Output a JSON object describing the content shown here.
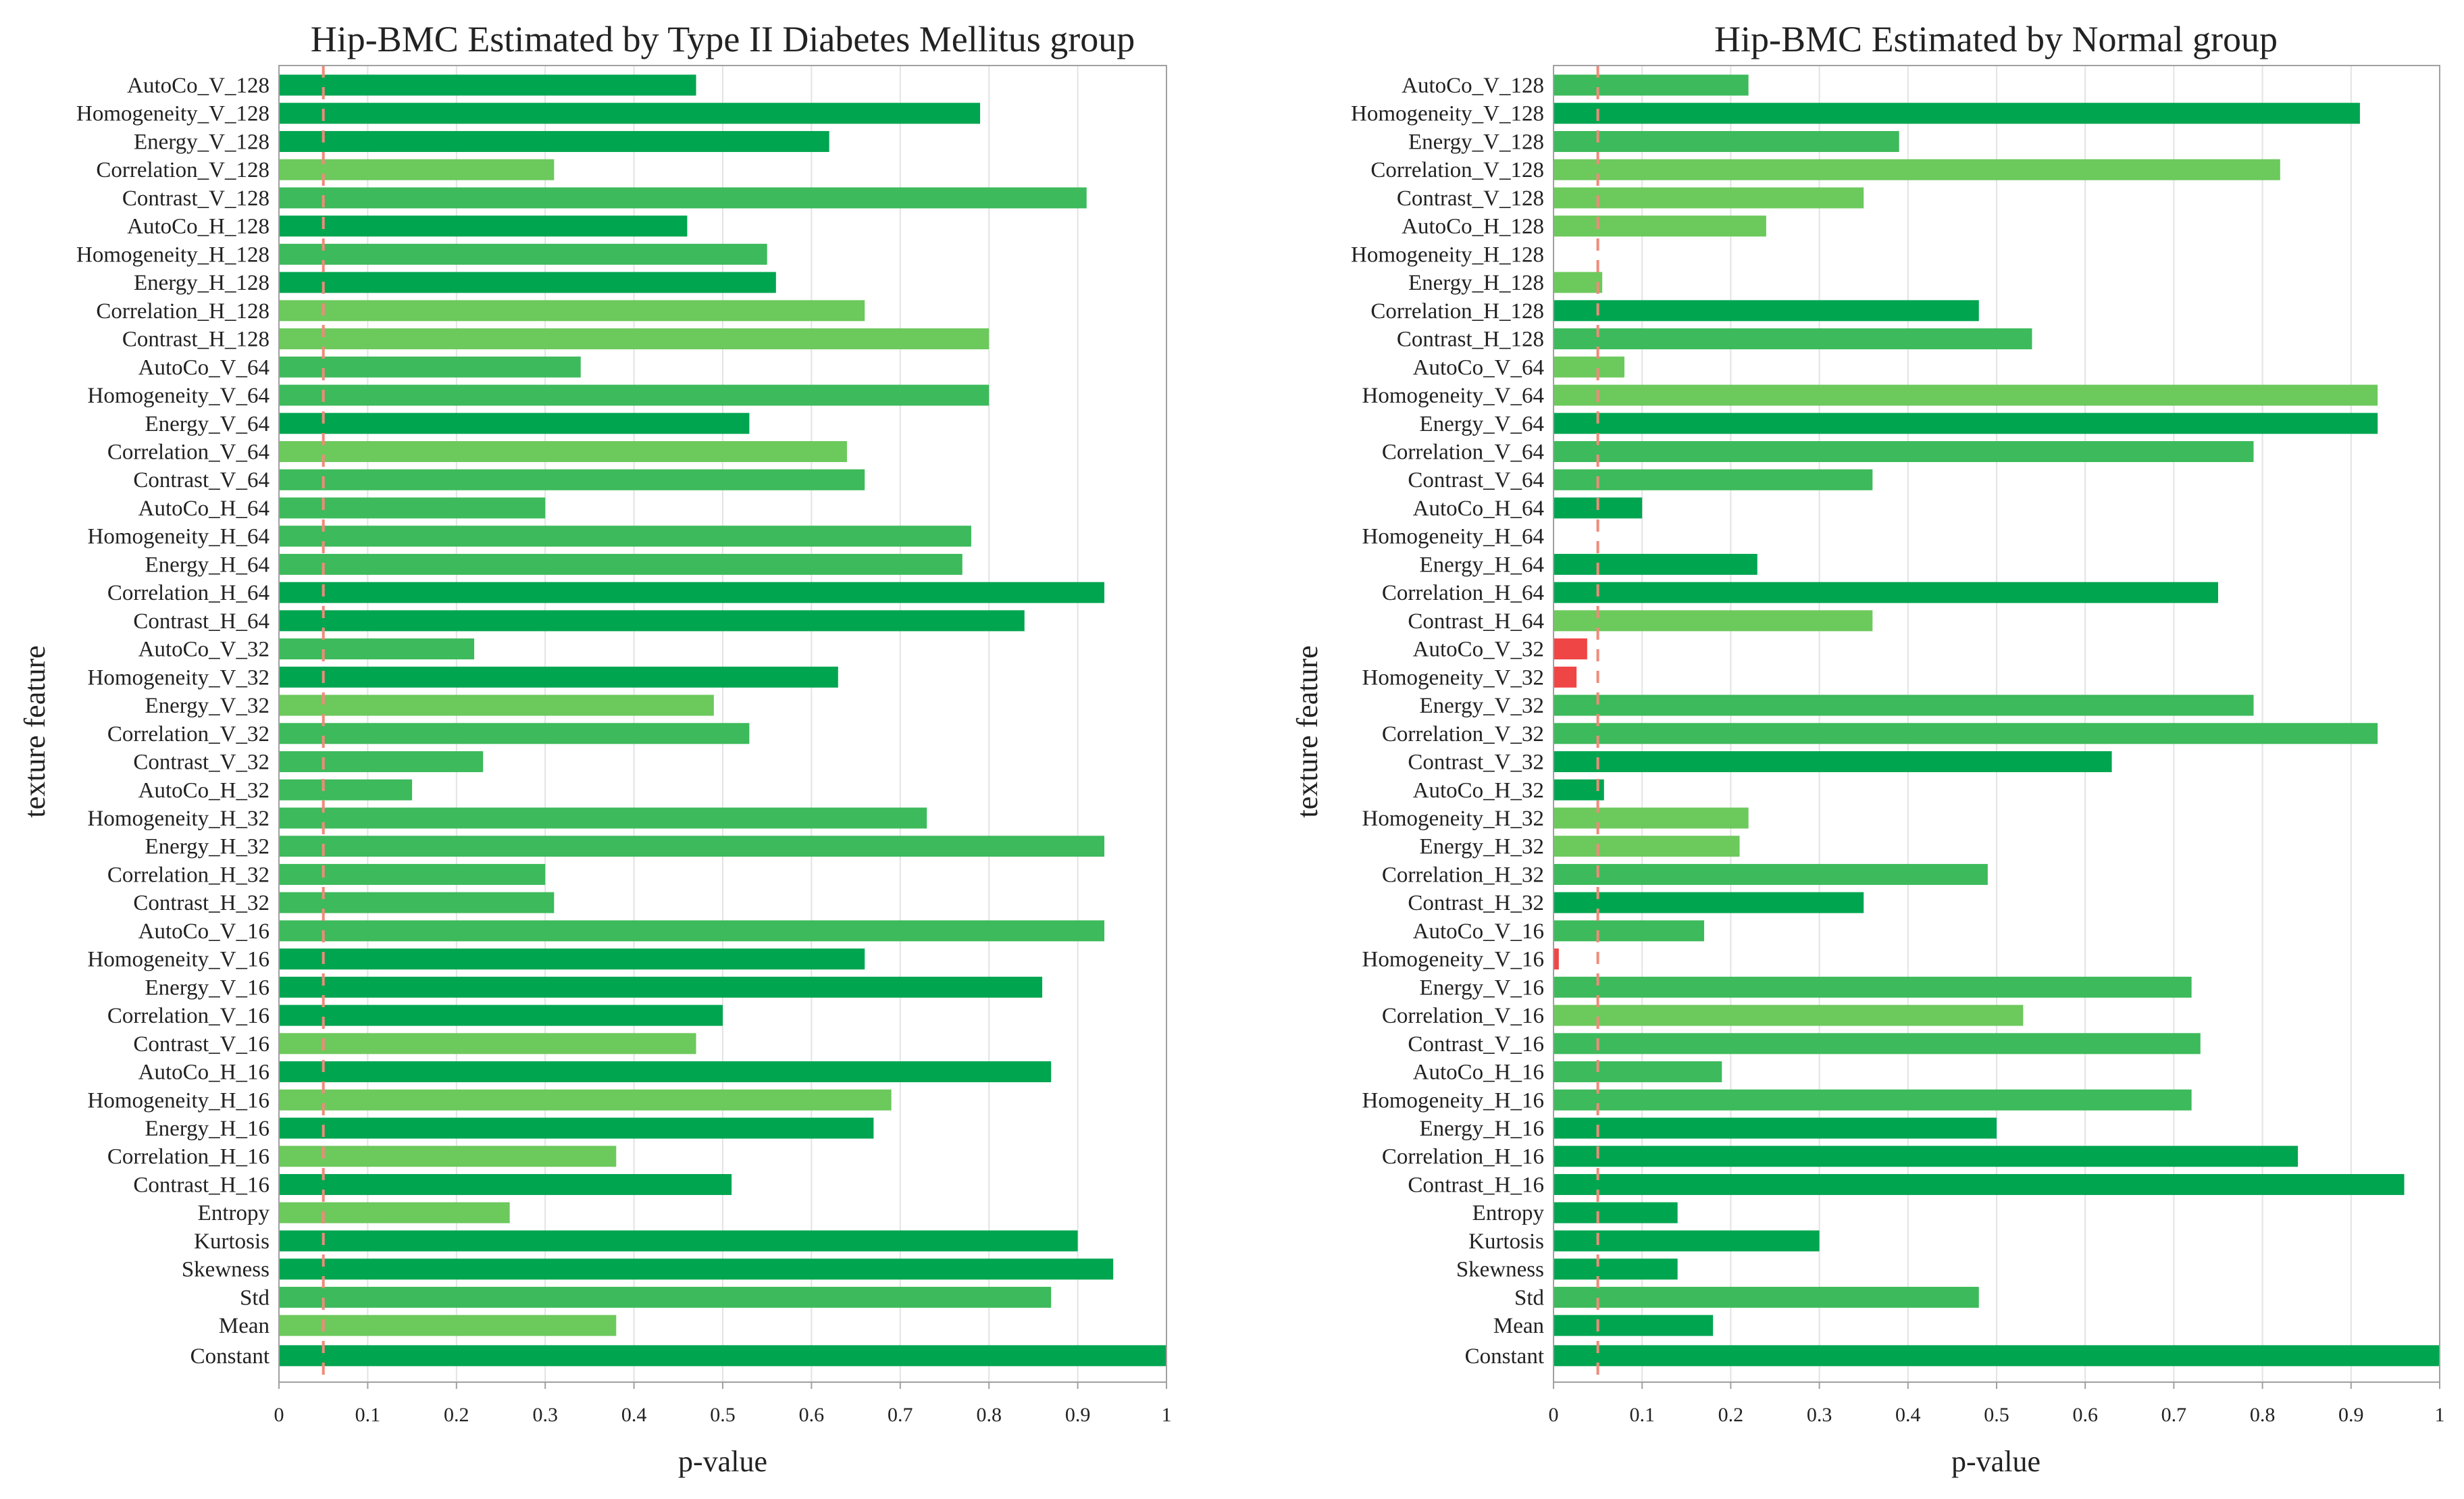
{
  "colors": {
    "dark_green": "#00a550",
    "mid_green": "#3dba5b",
    "light_green": "#6cc95c",
    "red": "#f04545",
    "threshold_line": "#f08a7a",
    "grid": "#e3e3e3",
    "frame": "#a0a0a0"
  },
  "chart_data": [
    {
      "type": "bar",
      "orientation": "horizontal",
      "title": "Hip-BMC Estimated by Type II Diabetes Mellitus group",
      "xlabel": "p-value",
      "ylabel": "texture feature",
      "xlim": [
        0,
        1
      ],
      "xticks": [
        "0",
        "0.1",
        "0.2",
        "0.3",
        "0.4",
        "0.5",
        "0.6",
        "0.7",
        "0.8",
        "0.9",
        "1"
      ],
      "threshold": 0.05,
      "grid": true,
      "categories": [
        "AutoCo_V_128",
        "Homogeneity_V_128",
        "Energy_V_128",
        "Correlation_V_128",
        "Contrast_V_128",
        "AutoCo_H_128",
        "Homogeneity_H_128",
        "Energy_H_128",
        "Correlation_H_128",
        "Contrast_H_128",
        "AutoCo_V_64",
        "Homogeneity_V_64",
        "Energy_V_64",
        "Correlation_V_64",
        "Contrast_V_64",
        "AutoCo_H_64",
        "Homogeneity_H_64",
        "Energy_H_64",
        "Correlation_H_64",
        "Contrast_H_64",
        "AutoCo_V_32",
        "Homogeneity_V_32",
        "Energy_V_32",
        "Correlation_V_32",
        "Contrast_V_32",
        "AutoCo_H_32",
        "Homogeneity_H_32",
        "Energy_H_32",
        "Correlation_H_32",
        "Contrast_H_32",
        "AutoCo_V_16",
        "Homogeneity_V_16",
        "Energy_V_16",
        "Correlation_V_16",
        "Contrast_V_16",
        "AutoCo_H_16",
        "Homogeneity_H_16",
        "Energy_H_16",
        "Correlation_H_16",
        "Contrast_H_16",
        "Entropy",
        "Kurtosis",
        "Skewness",
        "Std",
        "Mean",
        "Constant"
      ],
      "values": [
        0.47,
        0.79,
        0.62,
        0.31,
        0.91,
        0.46,
        0.55,
        0.56,
        0.66,
        0.8,
        0.34,
        0.8,
        0.53,
        0.64,
        0.66,
        0.3,
        0.78,
        0.77,
        0.93,
        0.84,
        0.22,
        0.63,
        0.49,
        0.53,
        0.23,
        0.15,
        0.73,
        0.93,
        0.3,
        0.31,
        0.93,
        0.66,
        0.86,
        0.5,
        0.47,
        0.87,
        0.69,
        0.67,
        0.38,
        0.51,
        0.26,
        0.9,
        0.94,
        0.87,
        0.38,
        1.0
      ],
      "bar_colors": [
        "dark",
        "dark",
        "dark",
        "light",
        "mid",
        "dark",
        "mid",
        "dark",
        "light",
        "light",
        "mid",
        "mid",
        "dark",
        "light",
        "mid",
        "mid",
        "mid",
        "mid",
        "dark",
        "dark",
        "mid",
        "dark",
        "light",
        "mid",
        "mid",
        "mid",
        "mid",
        "mid",
        "mid",
        "mid",
        "mid",
        "dark",
        "dark",
        "dark",
        "light",
        "dark",
        "light",
        "dark",
        "light",
        "dark",
        "light",
        "dark",
        "dark",
        "mid",
        "light",
        "dark"
      ]
    },
    {
      "type": "bar",
      "orientation": "horizontal",
      "title": "Hip-BMC Estimated by Normal group",
      "xlabel": "p-value",
      "ylabel": "texture feature",
      "xlim": [
        0,
        1
      ],
      "xticks": [
        "0",
        "0.1",
        "0.2",
        "0.3",
        "0.4",
        "0.5",
        "0.6",
        "0.7",
        "0.8",
        "0.9",
        "1"
      ],
      "threshold": 0.05,
      "grid": true,
      "categories": [
        "AutoCo_V_128",
        "Homogeneity_V_128",
        "Energy_V_128",
        "Correlation_V_128",
        "Contrast_V_128",
        "AutoCo_H_128",
        "Homogeneity_H_128",
        "Energy_H_128",
        "Correlation_H_128",
        "Contrast_H_128",
        "AutoCo_V_64",
        "Homogeneity_V_64",
        "Energy_V_64",
        "Correlation_V_64",
        "Contrast_V_64",
        "AutoCo_H_64",
        "Homogeneity_H_64",
        "Energy_H_64",
        "Correlation_H_64",
        "Contrast_H_64",
        "AutoCo_V_32",
        "Homogeneity_V_32",
        "Energy_V_32",
        "Correlation_V_32",
        "Contrast_V_32",
        "AutoCo_H_32",
        "Homogeneity_H_32",
        "Energy_H_32",
        "Correlation_H_32",
        "Contrast_H_32",
        "AutoCo_V_16",
        "Homogeneity_V_16",
        "Energy_V_16",
        "Correlation_V_16",
        "Contrast_V_16",
        "AutoCo_H_16",
        "Homogeneity_H_16",
        "Energy_H_16",
        "Correlation_H_16",
        "Contrast_H_16",
        "Entropy",
        "Kurtosis",
        "Skewness",
        "Std",
        "Mean",
        "Constant"
      ],
      "values": [
        0.22,
        0.91,
        0.39,
        0.82,
        0.35,
        0.24,
        0.0,
        0.055,
        0.48,
        0.54,
        0.08,
        0.93,
        0.93,
        0.79,
        0.36,
        0.1,
        0.0,
        0.23,
        0.75,
        0.36,
        0.038,
        0.026,
        0.79,
        0.93,
        0.63,
        0.057,
        0.22,
        0.21,
        0.49,
        0.35,
        0.17,
        0.006,
        0.72,
        0.53,
        0.73,
        0.19,
        0.72,
        0.5,
        0.84,
        0.96,
        0.14,
        0.3,
        0.14,
        0.48,
        0.18,
        1.0
      ],
      "bar_colors": [
        "mid",
        "dark",
        "mid",
        "light",
        "light",
        "light",
        "mid",
        "light",
        "dark",
        "mid",
        "light",
        "light",
        "dark",
        "mid",
        "mid",
        "dark",
        "mid",
        "dark",
        "dark",
        "light",
        "red",
        "red",
        "mid",
        "mid",
        "dark",
        "dark",
        "light",
        "light",
        "mid",
        "dark",
        "mid",
        "red",
        "mid",
        "light",
        "mid",
        "mid",
        "mid",
        "dark",
        "dark",
        "dark",
        "dark",
        "dark",
        "dark",
        "mid",
        "dark",
        "dark"
      ]
    }
  ]
}
